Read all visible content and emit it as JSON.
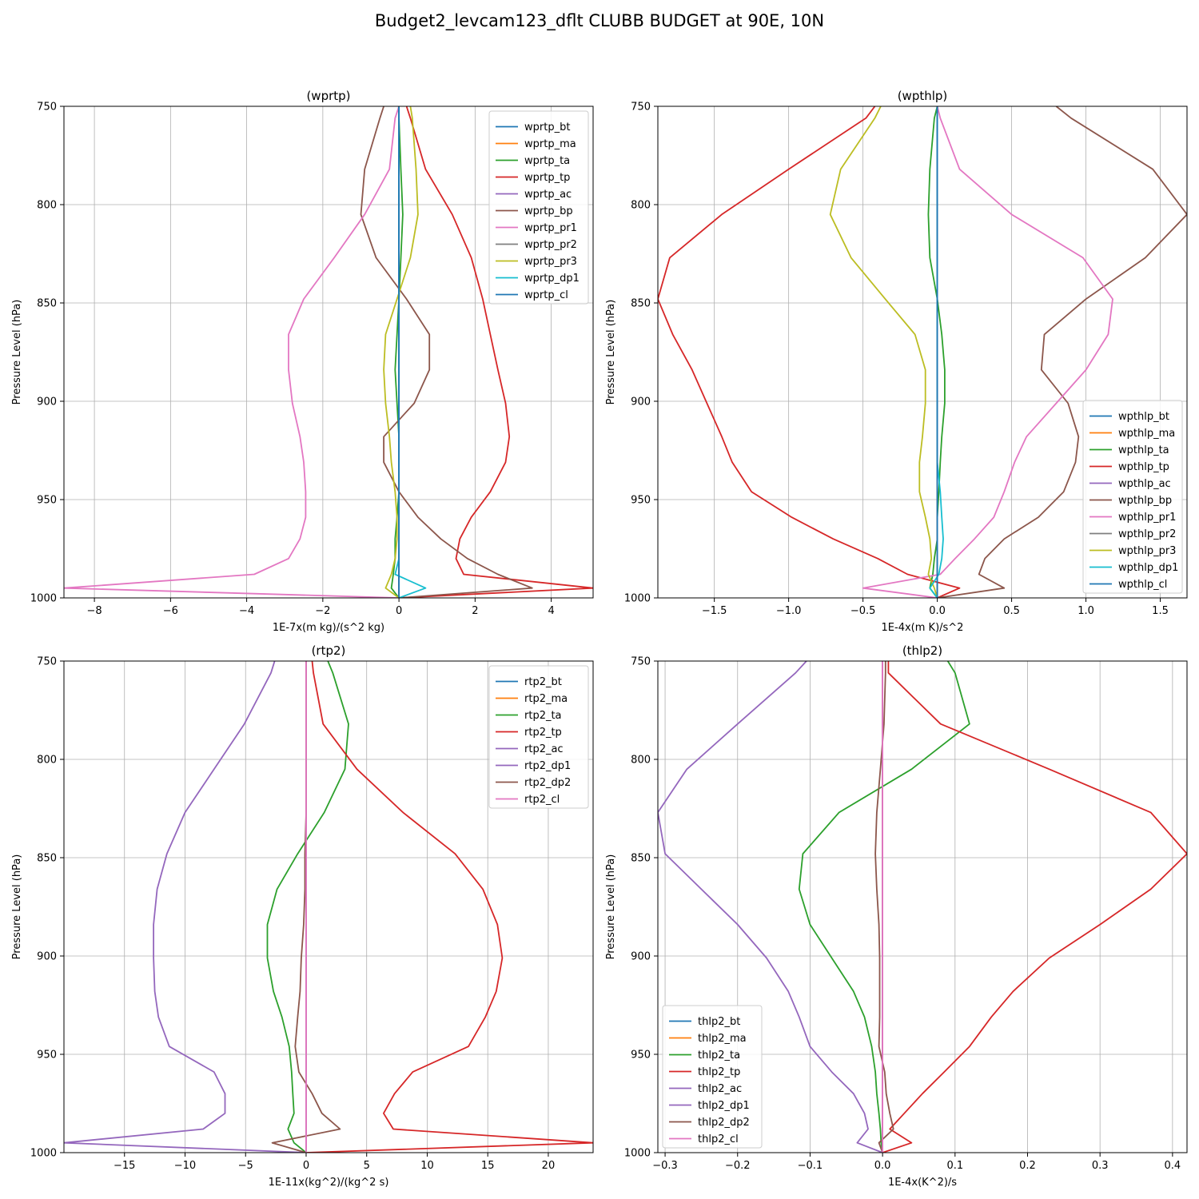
{
  "figure": {
    "suptitle": "Budget2_levcam123_dflt CLUBB BUDGET at 90E, 10N"
  },
  "chart_data": [
    {
      "type": "line",
      "title": "(wprtp)",
      "xlabel": "1E-7x(m kg)/(s^2 kg)",
      "ylabel": "Pressure Level (hPa)",
      "xlim": [
        -8.8,
        5.1
      ],
      "ylim": [
        1000,
        750
      ],
      "xticks": [
        -8,
        -6,
        -4,
        -2,
        0,
        2,
        4
      ],
      "yticks": [
        750,
        800,
        850,
        900,
        950,
        1000
      ],
      "grid": true,
      "legend_loc": "upper-right",
      "y": [
        750,
        756,
        782,
        805,
        827,
        848,
        866,
        884,
        901,
        918,
        931,
        946,
        959,
        970,
        980,
        988,
        995,
        1000
      ],
      "series": [
        {
          "name": "wprtp_bt",
          "color": "#1f77b4",
          "values": [
            0,
            0,
            0,
            0,
            0,
            0,
            0,
            0,
            0,
            0,
            0,
            0,
            0,
            0,
            0,
            0,
            0,
            0
          ]
        },
        {
          "name": "wprtp_ma",
          "color": "#ff7f0e",
          "values": [
            0,
            0,
            0,
            0,
            0,
            0,
            0,
            0,
            0,
            0,
            0,
            0,
            0,
            0,
            0,
            0,
            0,
            0
          ]
        },
        {
          "name": "wprtp_ta",
          "color": "#2ca02c",
          "values": [
            0,
            0,
            0.05,
            0.1,
            0.05,
            0,
            -0.05,
            -0.1,
            -0.05,
            0,
            0,
            0,
            -0.05,
            -0.1,
            -0.1,
            -0.15,
            -0.2,
            0
          ]
        },
        {
          "name": "wprtp_tp",
          "color": "#d62728",
          "values": [
            0.2,
            0.3,
            0.7,
            1.4,
            1.9,
            2.2,
            2.4,
            2.6,
            2.8,
            2.9,
            2.8,
            2.4,
            1.9,
            1.6,
            1.5,
            1.7,
            5.1,
            0
          ]
        },
        {
          "name": "wprtp_ac",
          "color": "#9467bd",
          "values": [
            0,
            0,
            0,
            0,
            0,
            0,
            0,
            0,
            0,
            0,
            0,
            0,
            0,
            0,
            0,
            0,
            0,
            0
          ]
        },
        {
          "name": "wprtp_bp",
          "color": "#8c564b",
          "values": [
            -0.4,
            -0.5,
            -0.9,
            -1.0,
            -0.6,
            0.2,
            0.8,
            0.8,
            0.4,
            -0.4,
            -0.4,
            0.0,
            0.5,
            1.1,
            1.8,
            2.6,
            3.5,
            0
          ]
        },
        {
          "name": "wprtp_pr1",
          "color": "#e377c2",
          "values": [
            0,
            -0.1,
            -0.25,
            -0.9,
            -1.7,
            -2.5,
            -2.9,
            -2.9,
            -2.8,
            -2.6,
            -2.5,
            -2.45,
            -2.45,
            -2.6,
            -2.9,
            -3.8,
            -8.8,
            0
          ]
        },
        {
          "name": "wprtp_pr2",
          "color": "#7f7f7f",
          "values": [
            0,
            0,
            0,
            0,
            0,
            0,
            0,
            0,
            0,
            0,
            0,
            0,
            0,
            0,
            0,
            0,
            0,
            0
          ]
        },
        {
          "name": "wprtp_pr3",
          "color": "#bcbd22",
          "values": [
            0.3,
            0.35,
            0.45,
            0.5,
            0.3,
            -0.05,
            -0.35,
            -0.4,
            -0.35,
            -0.25,
            -0.2,
            -0.1,
            -0.05,
            -0.05,
            -0.1,
            -0.2,
            -0.35,
            0
          ]
        },
        {
          "name": "wprtp_dp1",
          "color": "#17becf",
          "values": [
            0,
            0,
            0,
            0,
            0,
            0,
            0,
            0,
            0,
            0,
            0,
            0,
            0,
            0,
            0,
            -0.1,
            0.7,
            0
          ]
        },
        {
          "name": "wprtp_cl",
          "color": "#1f77b4",
          "values": [
            0,
            0,
            0,
            0,
            0,
            0,
            0,
            0,
            0,
            0,
            0,
            0,
            0,
            0,
            0,
            0,
            0,
            0
          ]
        }
      ]
    },
    {
      "type": "line",
      "title": "(wpthlp)",
      "xlabel": "1E-4x(m K)/s^2",
      "ylabel": "Pressure Level (hPa)",
      "xlim": [
        -1.88,
        1.68
      ],
      "ylim": [
        1000,
        750
      ],
      "xticks": [
        -1.5,
        -1.0,
        -0.5,
        0.0,
        0.5,
        1.0,
        1.5
      ],
      "yticks": [
        750,
        800,
        850,
        900,
        950,
        1000
      ],
      "grid": true,
      "legend_loc": "lower-right",
      "y": [
        750,
        756,
        782,
        805,
        827,
        848,
        866,
        884,
        901,
        918,
        931,
        946,
        959,
        970,
        980,
        988,
        995,
        1000
      ],
      "series": [
        {
          "name": "wpthlp_bt",
          "color": "#1f77b4",
          "values": [
            0,
            0,
            0,
            0,
            0,
            0,
            0,
            0,
            0,
            0,
            0,
            0,
            0,
            0,
            0,
            0,
            0,
            0
          ]
        },
        {
          "name": "wpthlp_ma",
          "color": "#ff7f0e",
          "values": [
            0,
            0,
            0,
            0,
            0,
            0,
            0,
            0,
            0,
            0,
            0,
            0,
            0,
            0,
            0,
            0,
            0,
            0
          ]
        },
        {
          "name": "wpthlp_ta",
          "color": "#2ca02c",
          "values": [
            0,
            -0.02,
            -0.05,
            -0.06,
            -0.05,
            0,
            0.03,
            0.05,
            0.05,
            0.03,
            0.02,
            0.01,
            0,
            0,
            -0.02,
            -0.03,
            -0.05,
            0
          ]
        },
        {
          "name": "wpthlp_tp",
          "color": "#d62728",
          "values": [
            -0.42,
            -0.48,
            -1.0,
            -1.45,
            -1.8,
            -1.88,
            -1.78,
            -1.65,
            -1.55,
            -1.45,
            -1.38,
            -1.25,
            -0.98,
            -0.7,
            -0.4,
            -0.2,
            0.15,
            0
          ]
        },
        {
          "name": "wpthlp_ac",
          "color": "#9467bd",
          "values": [
            0,
            0,
            0,
            0,
            0,
            0,
            0,
            0,
            0,
            0,
            0,
            0,
            0,
            0,
            0,
            0,
            0,
            0
          ]
        },
        {
          "name": "wpthlp_bp",
          "color": "#8c564b",
          "values": [
            0.8,
            0.9,
            1.45,
            1.68,
            1.4,
            1.0,
            0.72,
            0.7,
            0.88,
            0.95,
            0.93,
            0.85,
            0.68,
            0.45,
            0.32,
            0.28,
            0.45,
            0
          ]
        },
        {
          "name": "wpthlp_pr1",
          "color": "#e377c2",
          "values": [
            0,
            0.02,
            0.15,
            0.5,
            0.98,
            1.18,
            1.15,
            1.0,
            0.8,
            0.6,
            0.52,
            0.45,
            0.38,
            0.25,
            0.12,
            0.02,
            -0.5,
            0
          ]
        },
        {
          "name": "wpthlp_pr2",
          "color": "#7f7f7f",
          "values": [
            0,
            0,
            0,
            0,
            0,
            0,
            0,
            0,
            0,
            0,
            0,
            0,
            0,
            0,
            0,
            0,
            0,
            0
          ]
        },
        {
          "name": "wpthlp_pr3",
          "color": "#bcbd22",
          "values": [
            -0.38,
            -0.42,
            -0.65,
            -0.72,
            -0.58,
            -0.35,
            -0.15,
            -0.08,
            -0.08,
            -0.1,
            -0.12,
            -0.12,
            -0.08,
            -0.05,
            -0.04,
            -0.06,
            -0.02,
            0
          ]
        },
        {
          "name": "wpthlp_dp1",
          "color": "#17becf",
          "values": [
            0,
            0,
            0,
            0,
            0,
            0,
            0,
            0,
            0,
            0,
            0,
            0.02,
            0.03,
            0.04,
            0.03,
            0.01,
            -0.05,
            0
          ]
        },
        {
          "name": "wpthlp_cl",
          "color": "#1f77b4",
          "values": [
            0,
            0,
            0,
            0,
            0,
            0,
            0,
            0,
            0,
            0,
            0,
            0,
            0,
            0,
            0,
            0,
            0,
            0
          ]
        }
      ]
    },
    {
      "type": "line",
      "title": "(rtp2)",
      "xlabel": "1E-11x(kg^2)/(kg^2 s)",
      "ylabel": "Pressure Level (hPa)",
      "xlim": [
        -20,
        23.7
      ],
      "ylim": [
        1000,
        750
      ],
      "xticks": [
        -15,
        -10,
        -5,
        0,
        5,
        10,
        15,
        20
      ],
      "yticks": [
        750,
        800,
        850,
        900,
        950,
        1000
      ],
      "grid": true,
      "legend_loc": "upper-right",
      "y": [
        750,
        756,
        782,
        805,
        827,
        848,
        866,
        884,
        901,
        918,
        931,
        946,
        959,
        970,
        980,
        988,
        995,
        1000
      ],
      "series": [
        {
          "name": "rtp2_bt",
          "color": "#1f77b4",
          "values": [
            0,
            0,
            0,
            0,
            0,
            0,
            0,
            0,
            0,
            0,
            0,
            0,
            0,
            0,
            0,
            0,
            0,
            0
          ]
        },
        {
          "name": "rtp2_ma",
          "color": "#ff7f0e",
          "values": [
            0,
            0,
            0,
            0,
            0,
            0,
            0,
            0,
            0,
            0,
            0,
            0,
            0,
            0,
            0,
            0,
            0,
            0
          ]
        },
        {
          "name": "rtp2_ta",
          "color": "#2ca02c",
          "values": [
            1.8,
            2.2,
            3.5,
            3.2,
            1.5,
            -0.7,
            -2.4,
            -3.2,
            -3.2,
            -2.7,
            -2.0,
            -1.4,
            -1.2,
            -1.1,
            -1.0,
            -1.5,
            -1.0,
            0
          ]
        },
        {
          "name": "rtp2_tp",
          "color": "#d62728",
          "values": [
            0.5,
            0.6,
            1.4,
            4.2,
            8.0,
            12.3,
            14.6,
            15.8,
            16.2,
            15.7,
            14.8,
            13.4,
            8.8,
            7.3,
            6.4,
            7.2,
            23.7,
            0
          ]
        },
        {
          "name": "rtp2_ac",
          "color": "#9467bd",
          "values": [
            0,
            0,
            0,
            0,
            0,
            0,
            0,
            0,
            0,
            0,
            0,
            0,
            0,
            0,
            0,
            0,
            0,
            0
          ]
        },
        {
          "name": "rtp2_dp1",
          "color": "#9467bd",
          "values": [
            -2.6,
            -2.9,
            -5.1,
            -7.6,
            -10.0,
            -11.5,
            -12.3,
            -12.6,
            -12.6,
            -12.5,
            -12.2,
            -11.3,
            -7.6,
            -6.7,
            -6.7,
            -8.5,
            -20.0,
            0
          ]
        },
        {
          "name": "rtp2_dp2",
          "color": "#8c564b",
          "values": [
            0,
            0,
            0,
            0,
            0,
            -0.1,
            -0.1,
            -0.2,
            -0.4,
            -0.5,
            -0.7,
            -0.9,
            -0.6,
            0.5,
            1.3,
            2.8,
            -2.8,
            0
          ]
        },
        {
          "name": "rtp2_cl",
          "color": "#e377c2",
          "values": [
            0,
            0,
            0,
            0,
            0,
            0,
            0,
            0,
            0,
            0,
            0,
            0,
            0,
            0,
            0,
            0,
            0,
            0
          ]
        }
      ]
    },
    {
      "type": "line",
      "title": "(thlp2)",
      "xlabel": "1E-4x(K^2)/s",
      "ylabel": "Pressure Level (hPa)",
      "xlim": [
        -0.31,
        0.42
      ],
      "ylim": [
        1000,
        750
      ],
      "xticks": [
        -0.3,
        -0.2,
        -0.1,
        0.0,
        0.1,
        0.2,
        0.3,
        0.4
      ],
      "yticks": [
        750,
        800,
        850,
        900,
        950,
        1000
      ],
      "grid": true,
      "legend_loc": "lower-left",
      "y": [
        750,
        756,
        782,
        805,
        827,
        848,
        866,
        884,
        901,
        918,
        931,
        946,
        959,
        970,
        980,
        988,
        995,
        1000
      ],
      "series": [
        {
          "name": "thlp2_bt",
          "color": "#1f77b4",
          "values": [
            0,
            0,
            0,
            0,
            0,
            0,
            0,
            0,
            0,
            0,
            0,
            0,
            0,
            0,
            0,
            0,
            0,
            0
          ]
        },
        {
          "name": "thlp2_ma",
          "color": "#ff7f0e",
          "values": [
            0,
            0,
            0,
            0,
            0,
            0,
            0,
            0,
            0,
            0,
            0,
            0,
            0,
            0,
            0,
            0,
            0,
            0
          ]
        },
        {
          "name": "thlp2_ta",
          "color": "#2ca02c",
          "values": [
            0.09,
            0.1,
            0.12,
            0.04,
            -0.06,
            -0.11,
            -0.115,
            -0.1,
            -0.07,
            -0.04,
            -0.025,
            -0.015,
            -0.01,
            -0.008,
            -0.005,
            -0.003,
            -0.002,
            0
          ]
        },
        {
          "name": "thlp2_tp",
          "color": "#d62728",
          "values": [
            0.008,
            0.008,
            0.08,
            0.23,
            0.37,
            0.42,
            0.37,
            0.3,
            0.23,
            0.18,
            0.15,
            0.12,
            0.085,
            0.055,
            0.03,
            0.01,
            0.04,
            0
          ]
        },
        {
          "name": "thlp2_ac",
          "color": "#9467bd",
          "values": [
            0,
            0,
            0,
            0,
            0,
            0,
            0,
            0,
            0,
            0,
            0,
            0,
            0,
            0,
            0,
            0,
            0,
            0
          ]
        },
        {
          "name": "thlp2_dp1",
          "color": "#9467bd",
          "values": [
            -0.105,
            -0.12,
            -0.2,
            -0.27,
            -0.31,
            -0.3,
            -0.25,
            -0.2,
            -0.16,
            -0.13,
            -0.115,
            -0.1,
            -0.07,
            -0.04,
            -0.025,
            -0.02,
            -0.035,
            0
          ]
        },
        {
          "name": "thlp2_dp2",
          "color": "#8c564b",
          "values": [
            0.004,
            0.004,
            0.002,
            -0.003,
            -0.008,
            -0.01,
            -0.008,
            -0.005,
            -0.004,
            -0.004,
            -0.004,
            -0.005,
            0.003,
            0.005,
            0.01,
            0.015,
            -0.005,
            0
          ]
        },
        {
          "name": "thlp2_cl",
          "color": "#e377c2",
          "values": [
            0,
            0,
            0,
            0,
            0,
            0,
            0,
            0,
            0,
            0,
            0,
            0,
            0,
            0,
            0,
            0,
            0,
            0
          ]
        }
      ]
    }
  ]
}
